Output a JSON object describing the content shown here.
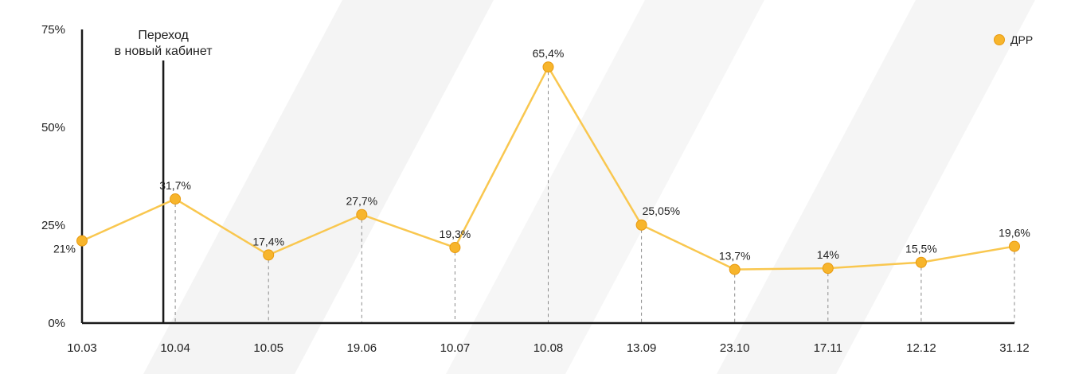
{
  "chart_data": {
    "type": "line",
    "categories": [
      "10.03",
      "10.04",
      "10.05",
      "19.06",
      "10.07",
      "10.08",
      "13.09",
      "23.10",
      "17.11",
      "12.12",
      "31.12"
    ],
    "series": [
      {
        "name": "ДРР",
        "values": [
          21,
          31.7,
          17.4,
          27.7,
          19.3,
          65.4,
          25.05,
          13.7,
          14,
          15.5,
          19.6
        ],
        "labels": [
          "21%",
          "31,7%",
          "17,4%",
          "27,7%",
          "19,3%",
          "65,4%",
          "25,05%",
          "13,7%",
          "14%",
          "15,5%",
          "19,6%"
        ]
      }
    ],
    "ylim": [
      0,
      75
    ],
    "yticks": [
      0,
      25,
      50,
      75
    ],
    "ytick_labels": [
      "0%",
      "25%",
      "50%",
      "75%"
    ],
    "annotation": {
      "at_category": "10.04",
      "lines": [
        "Переход",
        "в новый кабинет"
      ]
    },
    "legend": "top-right",
    "grid": false,
    "colors": {
      "line": "#F9C74F",
      "marker": "#F7B52C",
      "marker_stroke": "#E89A10",
      "axis": "#1a1a1a",
      "dash": "#8a8a8a"
    }
  }
}
